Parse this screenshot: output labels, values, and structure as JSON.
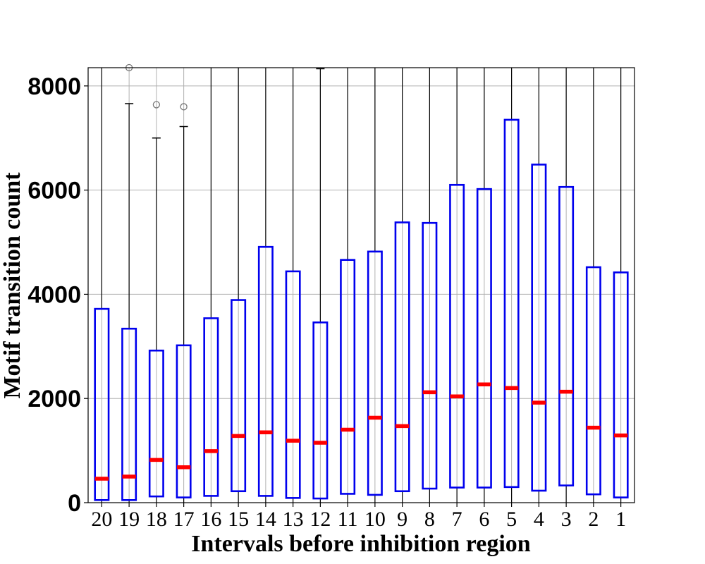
{
  "chart_data": {
    "type": "box",
    "xlabel": "Intervals before inhibition region",
    "ylabel": "Motif transition count",
    "ylim": [
      0,
      8350
    ],
    "yticks": [
      0,
      2000,
      4000,
      6000,
      8000
    ],
    "grid": true,
    "categories": [
      "20",
      "19",
      "18",
      "17",
      "16",
      "15",
      "14",
      "13",
      "12",
      "11",
      "10",
      "9",
      "8",
      "7",
      "6",
      "5",
      "4",
      "3",
      "2",
      "1"
    ],
    "boxes": [
      {
        "q1": 50,
        "median": 460,
        "q3": 3720,
        "whisker_low": 0,
        "whisker_high": 8350,
        "outliers": []
      },
      {
        "q1": 50,
        "median": 500,
        "q3": 3340,
        "whisker_low": 0,
        "whisker_high": 7660,
        "outliers": [
          8350
        ]
      },
      {
        "q1": 120,
        "median": 820,
        "q3": 2920,
        "whisker_low": 0,
        "whisker_high": 7000,
        "outliers": [
          7640
        ]
      },
      {
        "q1": 100,
        "median": 680,
        "q3": 3020,
        "whisker_low": 0,
        "whisker_high": 7220,
        "outliers": [
          7600
        ]
      },
      {
        "q1": 130,
        "median": 990,
        "q3": 3540,
        "whisker_low": 0,
        "whisker_high": 8350,
        "outliers": []
      },
      {
        "q1": 220,
        "median": 1280,
        "q3": 3890,
        "whisker_low": 0,
        "whisker_high": 8350,
        "outliers": []
      },
      {
        "q1": 130,
        "median": 1350,
        "q3": 4910,
        "whisker_low": 0,
        "whisker_high": 8350,
        "outliers": []
      },
      {
        "q1": 90,
        "median": 1190,
        "q3": 4440,
        "whisker_low": 0,
        "whisker_high": 8350,
        "outliers": []
      },
      {
        "q1": 80,
        "median": 1150,
        "q3": 3460,
        "whisker_low": 0,
        "whisker_high": 8330,
        "outliers": []
      },
      {
        "q1": 170,
        "median": 1400,
        "q3": 4660,
        "whisker_low": 0,
        "whisker_high": 8350,
        "outliers": []
      },
      {
        "q1": 150,
        "median": 1630,
        "q3": 4820,
        "whisker_low": 0,
        "whisker_high": 8350,
        "outliers": []
      },
      {
        "q1": 220,
        "median": 1470,
        "q3": 5380,
        "whisker_low": 0,
        "whisker_high": 8350,
        "outliers": []
      },
      {
        "q1": 270,
        "median": 2120,
        "q3": 5370,
        "whisker_low": 0,
        "whisker_high": 8350,
        "outliers": []
      },
      {
        "q1": 290,
        "median": 2040,
        "q3": 6100,
        "whisker_low": 0,
        "whisker_high": 8350,
        "outliers": []
      },
      {
        "q1": 290,
        "median": 2270,
        "q3": 6020,
        "whisker_low": 0,
        "whisker_high": 8350,
        "outliers": []
      },
      {
        "q1": 300,
        "median": 2200,
        "q3": 7350,
        "whisker_low": 0,
        "whisker_high": 8350,
        "outliers": []
      },
      {
        "q1": 230,
        "median": 1920,
        "q3": 6490,
        "whisker_low": 0,
        "whisker_high": 8350,
        "outliers": []
      },
      {
        "q1": 330,
        "median": 2130,
        "q3": 6060,
        "whisker_low": 0,
        "whisker_high": 8350,
        "outliers": []
      },
      {
        "q1": 160,
        "median": 1440,
        "q3": 4520,
        "whisker_low": 0,
        "whisker_high": 8350,
        "outliers": []
      },
      {
        "q1": 100,
        "median": 1290,
        "q3": 4420,
        "whisker_low": 0,
        "whisker_high": 8350,
        "outliers": []
      }
    ],
    "colors": {
      "box": "#0000ee",
      "median": "#ff0000",
      "whisker": "#000000",
      "outlier": "#777777",
      "grid": "#b0b0b0"
    }
  }
}
